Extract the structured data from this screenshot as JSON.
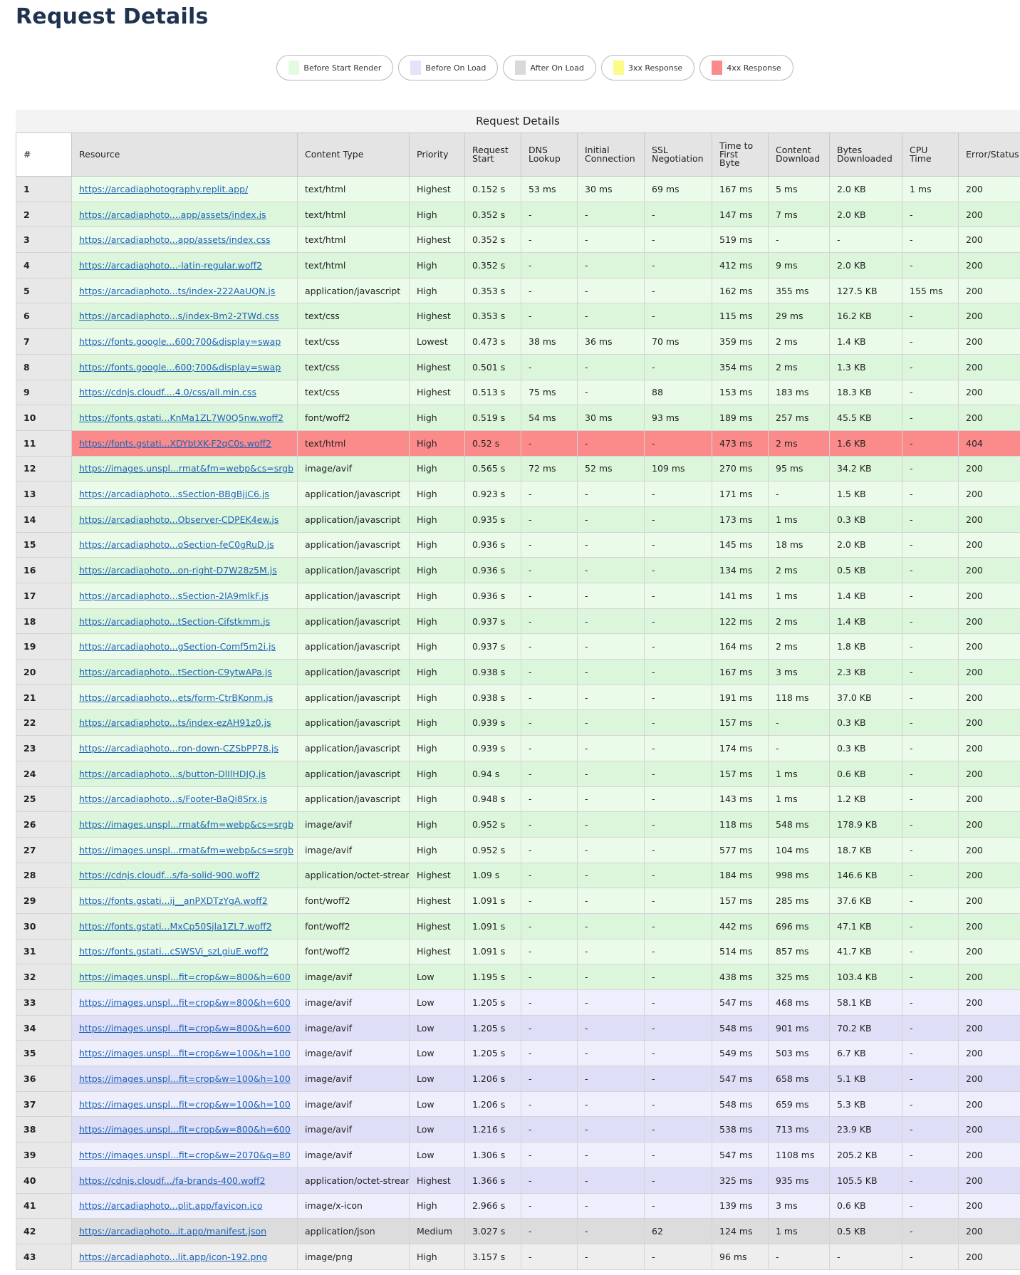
{
  "page": {
    "title": "Request Details"
  },
  "legend": [
    {
      "label": "Before Start Render",
      "color": "#e4fbe2"
    },
    {
      "label": "Before On Load",
      "color": "#e3e3fb"
    },
    {
      "label": "After On Load",
      "color": "#d9d9d9"
    },
    {
      "label": "3xx Response",
      "color": "#fbfb8a"
    },
    {
      "label": "4xx Response",
      "color": "#fb8a8a"
    }
  ],
  "table": {
    "caption": "Request Details",
    "headers": [
      "#",
      "Resource",
      "Content Type",
      "Priority",
      "Request Start",
      "DNS Lookup",
      "Initial Connection",
      "SSL Negotiation",
      "Time to First Byte",
      "Content Download",
      "Bytes Downloaded",
      "CPU Time",
      "Error/Status Code"
    ],
    "rows": [
      [
        "1",
        "https://arcadiaphotography.replit.app/",
        "text/html",
        "Highest",
        "0.152 s",
        "53 ms",
        "30 ms",
        "69 ms",
        "167 ms",
        "5 ms",
        "2.0 KB",
        "1 ms",
        "200",
        "start"
      ],
      [
        "2",
        "https://arcadiaphoto....app/assets/index.js",
        "text/html",
        "High",
        "0.352 s",
        "-",
        "-",
        "-",
        "147 ms",
        "7 ms",
        "2.0 KB",
        "-",
        "200",
        "start"
      ],
      [
        "3",
        "https://arcadiaphoto...app/assets/index.css",
        "text/html",
        "Highest",
        "0.352 s",
        "-",
        "-",
        "-",
        "519 ms",
        "-",
        "-",
        "-",
        "200",
        "start"
      ],
      [
        "4",
        "https://arcadiaphoto...-latin-regular.woff2",
        "text/html",
        "High",
        "0.352 s",
        "-",
        "-",
        "-",
        "412 ms",
        "9 ms",
        "2.0 KB",
        "-",
        "200",
        "start"
      ],
      [
        "5",
        "https://arcadiaphoto...ts/index-222AaUQN.js",
        "application/javascript",
        "High",
        "0.353 s",
        "-",
        "-",
        "-",
        "162 ms",
        "355 ms",
        "127.5 KB",
        "155 ms",
        "200",
        "start"
      ],
      [
        "6",
        "https://arcadiaphoto...s/index-Bm2-2TWd.css",
        "text/css",
        "Highest",
        "0.353 s",
        "-",
        "-",
        "-",
        "115 ms",
        "29 ms",
        "16.2 KB",
        "-",
        "200",
        "start"
      ],
      [
        "7",
        "https://fonts.google...600;700&display=swap",
        "text/css",
        "Lowest",
        "0.473 s",
        "38 ms",
        "36 ms",
        "70 ms",
        "359 ms",
        "2 ms",
        "1.4 KB",
        "-",
        "200",
        "start"
      ],
      [
        "8",
        "https://fonts.google...600;700&display=swap",
        "text/css",
        "Highest",
        "0.501 s",
        "-",
        "-",
        "-",
        "354 ms",
        "2 ms",
        "1.3 KB",
        "-",
        "200",
        "start"
      ],
      [
        "9",
        "https://cdnjs.cloudf....4.0/css/all.min.css",
        "text/css",
        "Highest",
        "0.513 s",
        "75 ms",
        "-",
        "88",
        "153 ms",
        "183 ms",
        "18.3 KB",
        "-",
        "200",
        "start"
      ],
      [
        "10",
        "https://fonts.gstati...KnMa1ZL7W0Q5nw.woff2",
        "font/woff2",
        "High",
        "0.519 s",
        "54 ms",
        "30 ms",
        "93 ms",
        "189 ms",
        "257 ms",
        "45.5 KB",
        "-",
        "200",
        "start"
      ],
      [
        "11",
        "https://fonts.gstati...XDYbtXK-F2qC0s.woff2",
        "text/html",
        "High",
        "0.52 s",
        "-",
        "-",
        "-",
        "473 ms",
        "2 ms",
        "1.6 KB",
        "-",
        "404",
        "4xx"
      ],
      [
        "12",
        "https://images.unspl...rmat&fm=webp&cs=srgb",
        "image/avif",
        "High",
        "0.565 s",
        "72 ms",
        "52 ms",
        "109 ms",
        "270 ms",
        "95 ms",
        "34.2 KB",
        "-",
        "200",
        "start"
      ],
      [
        "13",
        "https://arcadiaphoto...sSection-BBgBjjC6.js",
        "application/javascript",
        "High",
        "0.923 s",
        "-",
        "-",
        "-",
        "171 ms",
        "-",
        "1.5 KB",
        "-",
        "200",
        "start"
      ],
      [
        "14",
        "https://arcadiaphoto...Observer-CDPEK4ew.js",
        "application/javascript",
        "High",
        "0.935 s",
        "-",
        "-",
        "-",
        "173 ms",
        "1 ms",
        "0.3 KB",
        "-",
        "200",
        "start"
      ],
      [
        "15",
        "https://arcadiaphoto...oSection-feC0gRuD.js",
        "application/javascript",
        "High",
        "0.936 s",
        "-",
        "-",
        "-",
        "145 ms",
        "18 ms",
        "2.0 KB",
        "-",
        "200",
        "start"
      ],
      [
        "16",
        "https://arcadiaphoto...on-right-D7W28z5M.js",
        "application/javascript",
        "High",
        "0.936 s",
        "-",
        "-",
        "-",
        "134 ms",
        "2 ms",
        "0.5 KB",
        "-",
        "200",
        "start"
      ],
      [
        "17",
        "https://arcadiaphoto...sSection-2lA9mlkF.js",
        "application/javascript",
        "High",
        "0.936 s",
        "-",
        "-",
        "-",
        "141 ms",
        "1 ms",
        "1.4 KB",
        "-",
        "200",
        "start"
      ],
      [
        "18",
        "https://arcadiaphoto...tSection-Cifstkmm.js",
        "application/javascript",
        "High",
        "0.937 s",
        "-",
        "-",
        "-",
        "122 ms",
        "2 ms",
        "1.4 KB",
        "-",
        "200",
        "start"
      ],
      [
        "19",
        "https://arcadiaphoto...gSection-Comf5m2i.js",
        "application/javascript",
        "High",
        "0.937 s",
        "-",
        "-",
        "-",
        "164 ms",
        "2 ms",
        "1.8 KB",
        "-",
        "200",
        "start"
      ],
      [
        "20",
        "https://arcadiaphoto...tSection-C9ytwAPa.js",
        "application/javascript",
        "High",
        "0.938 s",
        "-",
        "-",
        "-",
        "167 ms",
        "3 ms",
        "2.3 KB",
        "-",
        "200",
        "start"
      ],
      [
        "21",
        "https://arcadiaphoto...ets/form-CtrBKonm.js",
        "application/javascript",
        "High",
        "0.938 s",
        "-",
        "-",
        "-",
        "191 ms",
        "118 ms",
        "37.0 KB",
        "-",
        "200",
        "start"
      ],
      [
        "22",
        "https://arcadiaphoto...ts/index-ezAH91z0.js",
        "application/javascript",
        "High",
        "0.939 s",
        "-",
        "-",
        "-",
        "157 ms",
        "-",
        "0.3 KB",
        "-",
        "200",
        "start"
      ],
      [
        "23",
        "https://arcadiaphoto...ron-down-CZSbPP78.js",
        "application/javascript",
        "High",
        "0.939 s",
        "-",
        "-",
        "-",
        "174 ms",
        "-",
        "0.3 KB",
        "-",
        "200",
        "start"
      ],
      [
        "24",
        "https://arcadiaphoto...s/button-DlIlHDJQ.js",
        "application/javascript",
        "High",
        "0.94 s",
        "-",
        "-",
        "-",
        "157 ms",
        "1 ms",
        "0.6 KB",
        "-",
        "200",
        "start"
      ],
      [
        "25",
        "https://arcadiaphoto...s/Footer-BaQi8Srx.js",
        "application/javascript",
        "High",
        "0.948 s",
        "-",
        "-",
        "-",
        "143 ms",
        "1 ms",
        "1.2 KB",
        "-",
        "200",
        "start"
      ],
      [
        "26",
        "https://images.unspl...rmat&fm=webp&cs=srgb",
        "image/avif",
        "High",
        "0.952 s",
        "-",
        "-",
        "-",
        "118 ms",
        "548 ms",
        "178.9 KB",
        "-",
        "200",
        "start"
      ],
      [
        "27",
        "https://images.unspl...rmat&fm=webp&cs=srgb",
        "image/avif",
        "High",
        "0.952 s",
        "-",
        "-",
        "-",
        "577 ms",
        "104 ms",
        "18.7 KB",
        "-",
        "200",
        "start"
      ],
      [
        "28",
        "https://cdnjs.cloudf...s/fa-solid-900.woff2",
        "application/octet-stream",
        "Highest",
        "1.09 s",
        "-",
        "-",
        "-",
        "184 ms",
        "998 ms",
        "146.6 KB",
        "-",
        "200",
        "start"
      ],
      [
        "29",
        "https://fonts.gstati...ij__anPXDTzYgA.woff2",
        "font/woff2",
        "Highest",
        "1.091 s",
        "-",
        "-",
        "-",
        "157 ms",
        "285 ms",
        "37.6 KB",
        "-",
        "200",
        "start"
      ],
      [
        "30",
        "https://fonts.gstati...MxCp50Sjla1ZL7.woff2",
        "font/woff2",
        "Highest",
        "1.091 s",
        "-",
        "-",
        "-",
        "442 ms",
        "696 ms",
        "47.1 KB",
        "-",
        "200",
        "start"
      ],
      [
        "31",
        "https://fonts.gstati...cSWSVi_szLgiuE.woff2",
        "font/woff2",
        "Highest",
        "1.091 s",
        "-",
        "-",
        "-",
        "514 ms",
        "857 ms",
        "41.7 KB",
        "-",
        "200",
        "start"
      ],
      [
        "32",
        "https://images.unspl...fit=crop&w=800&h=600",
        "image/avif",
        "Low",
        "1.195 s",
        "-",
        "-",
        "-",
        "438 ms",
        "325 ms",
        "103.4 KB",
        "-",
        "200",
        "start"
      ],
      [
        "33",
        "https://images.unspl...fit=crop&w=800&h=600",
        "image/avif",
        "Low",
        "1.205 s",
        "-",
        "-",
        "-",
        "547 ms",
        "468 ms",
        "58.1 KB",
        "-",
        "200",
        "onload"
      ],
      [
        "34",
        "https://images.unspl...fit=crop&w=800&h=600",
        "image/avif",
        "Low",
        "1.205 s",
        "-",
        "-",
        "-",
        "548 ms",
        "901 ms",
        "70.2 KB",
        "-",
        "200",
        "onload"
      ],
      [
        "35",
        "https://images.unspl...fit=crop&w=100&h=100",
        "image/avif",
        "Low",
        "1.205 s",
        "-",
        "-",
        "-",
        "549 ms",
        "503 ms",
        "6.7 KB",
        "-",
        "200",
        "onload"
      ],
      [
        "36",
        "https://images.unspl...fit=crop&w=100&h=100",
        "image/avif",
        "Low",
        "1.206 s",
        "-",
        "-",
        "-",
        "547 ms",
        "658 ms",
        "5.1 KB",
        "-",
        "200",
        "onload"
      ],
      [
        "37",
        "https://images.unspl...fit=crop&w=100&h=100",
        "image/avif",
        "Low",
        "1.206 s",
        "-",
        "-",
        "-",
        "548 ms",
        "659 ms",
        "5.3 KB",
        "-",
        "200",
        "onload"
      ],
      [
        "38",
        "https://images.unspl...fit=crop&w=800&h=600",
        "image/avif",
        "Low",
        "1.216 s",
        "-",
        "-",
        "-",
        "538 ms",
        "713 ms",
        "23.9 KB",
        "-",
        "200",
        "onload"
      ],
      [
        "39",
        "https://images.unspl...fit=crop&w=2070&q=80",
        "image/avif",
        "Low",
        "1.306 s",
        "-",
        "-",
        "-",
        "547 ms",
        "1108 ms",
        "205.2 KB",
        "-",
        "200",
        "onload"
      ],
      [
        "40",
        "https://cdnjs.cloudf.../fa-brands-400.woff2",
        "application/octet-stream",
        "Highest",
        "1.366 s",
        "-",
        "-",
        "-",
        "325 ms",
        "935 ms",
        "105.5 KB",
        "-",
        "200",
        "onload"
      ],
      [
        "41",
        "https://arcadiaphoto...plit.app/favicon.ico",
        "image/x-icon",
        "High",
        "2.966 s",
        "-",
        "-",
        "-",
        "139 ms",
        "3 ms",
        "0.6 KB",
        "-",
        "200",
        "onload"
      ],
      [
        "42",
        "https://arcadiaphoto...it.app/manifest.json",
        "application/json",
        "Medium",
        "3.027 s",
        "-",
        "-",
        "62",
        "124 ms",
        "1 ms",
        "0.5 KB",
        "-",
        "200",
        "after"
      ],
      [
        "43",
        "https://arcadiaphoto...lit.app/icon-192.png",
        "image/png",
        "High",
        "3.157 s",
        "-",
        "-",
        "-",
        "96 ms",
        "-",
        "-",
        "-",
        "200",
        "after"
      ]
    ]
  }
}
